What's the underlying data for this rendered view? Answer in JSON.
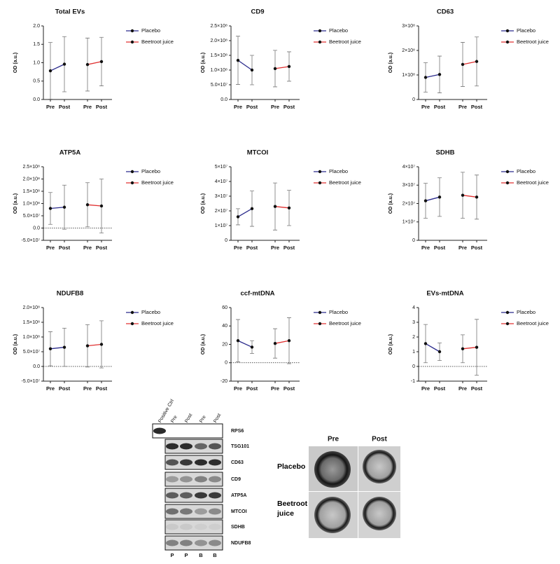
{
  "chart_data": [
    {
      "type": "line",
      "title": "Total EVs",
      "ylabel": "OD (a.u.)",
      "categories": [
        "Pre",
        "Post",
        "Pre",
        "Post"
      ],
      "series": [
        {
          "name": "Placebo",
          "color": "#2b2b8c",
          "values": [
            0.78,
            0.96,
            null,
            null
          ],
          "errors": [
            0.77,
            0.75,
            null,
            null
          ]
        },
        {
          "name": "Beetroot juice",
          "color": "#e03030",
          "values": [
            null,
            null,
            0.95,
            1.03
          ],
          "errors": [
            null,
            null,
            0.72,
            0.66
          ]
        }
      ],
      "ylim": [
        0,
        2
      ],
      "yticks": [
        {
          "value": 0,
          "label": "0.0"
        },
        0.5,
        {
          "value": 1,
          "label": "1.0"
        },
        1.5,
        {
          "value": 2,
          "label": "2.0"
        }
      ]
    },
    {
      "type": "line",
      "title": "CD9",
      "ylabel": "OD (a.u.)",
      "categories": [
        "Pre",
        "Post",
        "Pre",
        "Post"
      ],
      "series": [
        {
          "name": "Placebo",
          "color": "#2b2b8c",
          "values": [
            133000000,
            100000000,
            null,
            null
          ],
          "errors": [
            82000000,
            50000000,
            null,
            null
          ]
        },
        {
          "name": "Beetroot juice",
          "color": "#e03030",
          "values": [
            null,
            null,
            105000000,
            112000000
          ],
          "errors": [
            null,
            null,
            62000000,
            50000000
          ]
        }
      ],
      "ylim": [
        0,
        250000000
      ],
      "yticks": [
        {
          "value": 0,
          "label": "0.0"
        },
        {
          "value": 50000000,
          "label": "5.0×10⁷"
        },
        {
          "value": 100000000,
          "label": "1.0×10⁸"
        },
        {
          "value": 150000000,
          "label": "1.5×10⁸"
        },
        {
          "value": 200000000,
          "label": "2.0×10⁸"
        },
        {
          "value": 250000000,
          "label": "2.5×10⁸"
        }
      ]
    },
    {
      "type": "line",
      "title": "CD63",
      "ylabel": "OD (a.u.)",
      "categories": [
        "Pre",
        "Post",
        "Pre",
        "Post"
      ],
      "series": [
        {
          "name": "Placebo",
          "color": "#2b2b8c",
          "values": [
            90000000,
            102000000,
            null,
            null
          ],
          "errors": [
            60000000,
            75000000,
            null,
            null
          ]
        },
        {
          "name": "Beetroot juice",
          "color": "#e03030",
          "values": [
            null,
            null,
            143000000,
            155000000
          ],
          "errors": [
            null,
            null,
            90000000,
            100000000
          ]
        }
      ],
      "ylim": [
        0,
        300000000
      ],
      "yticks": [
        0,
        {
          "value": 100000000,
          "label": "1×10⁸"
        },
        {
          "value": 200000000,
          "label": "2×10⁸"
        },
        {
          "value": 300000000,
          "label": "3×10⁸"
        }
      ]
    },
    {
      "type": "line",
      "title": "ATP5A",
      "ylabel": "OD (a.u.)",
      "categories": [
        "Pre",
        "Post",
        "Pre",
        "Post"
      ],
      "series": [
        {
          "name": "Placebo",
          "color": "#2b2b8c",
          "values": [
            80000000,
            85000000,
            null,
            null
          ],
          "errors": [
            65000000,
            90000000,
            null,
            null
          ]
        },
        {
          "name": "Beetroot juice",
          "color": "#e03030",
          "values": [
            null,
            null,
            95000000,
            90000000
          ],
          "errors": [
            null,
            null,
            90000000,
            110000000
          ]
        }
      ],
      "ylim": [
        -50000000,
        250000000
      ],
      "yticks": [
        {
          "value": -50000000,
          "label": "-5.0×10⁷"
        },
        {
          "value": 0,
          "label": "0.0"
        },
        {
          "value": 50000000,
          "label": "5.0×10⁷"
        },
        {
          "value": 100000000,
          "label": "1.0×10⁸"
        },
        {
          "value": 150000000,
          "label": "1.5×10⁸"
        },
        {
          "value": 200000000,
          "label": "2.0×10⁸"
        },
        {
          "value": 250000000,
          "label": "2.5×10⁸"
        }
      ]
    },
    {
      "type": "line",
      "title": "MTCOI",
      "ylabel": "OD (a.u.)",
      "categories": [
        "Pre",
        "Post",
        "Pre",
        "Post"
      ],
      "series": [
        {
          "name": "Placebo",
          "color": "#2b2b8c",
          "values": [
            16000000,
            21500000,
            null,
            null
          ],
          "errors": [
            5500000,
            12000000,
            null,
            null
          ]
        },
        {
          "name": "Beetroot juice",
          "color": "#e03030",
          "values": [
            null,
            null,
            23000000,
            22000000
          ],
          "errors": [
            null,
            null,
            16000000,
            12000000
          ]
        }
      ],
      "ylim": [
        0,
        50000000
      ],
      "yticks": [
        0,
        {
          "value": 10000000,
          "label": "1×10⁷"
        },
        {
          "value": 20000000,
          "label": "2×10⁷"
        },
        {
          "value": 30000000,
          "label": "3×10⁷"
        },
        {
          "value": 40000000,
          "label": "4×10⁷"
        },
        {
          "value": 50000000,
          "label": "5×10⁷"
        }
      ]
    },
    {
      "type": "line",
      "title": "SDHB",
      "ylabel": "OD (a.u.)",
      "categories": [
        "Pre",
        "Post",
        "Pre",
        "Post"
      ],
      "series": [
        {
          "name": "Placebo",
          "color": "#2b2b8c",
          "values": [
            21500000,
            23500000,
            null,
            null
          ],
          "errors": [
            9500000,
            10500000,
            null,
            null
          ]
        },
        {
          "name": "Beetroot juice",
          "color": "#e03030",
          "values": [
            null,
            null,
            24500000,
            23500000
          ],
          "errors": [
            null,
            null,
            12500000,
            12000000
          ]
        }
      ],
      "ylim": [
        0,
        40000000
      ],
      "yticks": [
        0,
        {
          "value": 10000000,
          "label": "1×10⁷"
        },
        {
          "value": 20000000,
          "label": "2×10⁷"
        },
        {
          "value": 30000000,
          "label": "3×10⁷"
        },
        {
          "value": 40000000,
          "label": "4×10⁷"
        }
      ]
    },
    {
      "type": "line",
      "title": "NDUFB8",
      "ylabel": "OD (a.u.)",
      "categories": [
        "Pre",
        "Post",
        "Pre",
        "Post"
      ],
      "series": [
        {
          "name": "Placebo",
          "color": "#2b2b8c",
          "values": [
            60000000,
            65000000,
            null,
            null
          ],
          "errors": [
            58000000,
            65000000,
            null,
            null
          ]
        },
        {
          "name": "Beetroot juice",
          "color": "#e03030",
          "values": [
            null,
            null,
            70000000,
            75000000
          ],
          "errors": [
            null,
            null,
            72000000,
            80000000
          ]
        }
      ],
      "ylim": [
        -50000000,
        200000000
      ],
      "yticks": [
        {
          "value": -50000000,
          "label": "-5.0×10⁷"
        },
        {
          "value": 0,
          "label": "0.0"
        },
        {
          "value": 50000000,
          "label": "5.0×10⁷"
        },
        {
          "value": 100000000,
          "label": "1.0×10⁸"
        },
        {
          "value": 150000000,
          "label": "1.5×10⁸"
        },
        {
          "value": 200000000,
          "label": "2.0×10⁸"
        }
      ]
    },
    {
      "type": "line",
      "title": "ccf-mtDNA",
      "ylabel": "OD (a.u.)",
      "categories": [
        "Pre",
        "Post",
        "Pre",
        "Post"
      ],
      "series": [
        {
          "name": "Placebo",
          "color": "#2b2b8c",
          "values": [
            24,
            17,
            null,
            null
          ],
          "errors": [
            23,
            7,
            null,
            null
          ]
        },
        {
          "name": "Beetroot juice",
          "color": "#e03030",
          "values": [
            null,
            null,
            21,
            24
          ],
          "errors": [
            null,
            null,
            16,
            25
          ]
        }
      ],
      "ylim": [
        -20,
        60
      ],
      "yticks": [
        -20,
        0,
        20,
        40,
        60
      ]
    },
    {
      "type": "line",
      "title": "EVs-mtDNA",
      "ylabel": "OD (a.u.)",
      "categories": [
        "Pre",
        "Post",
        "Pre",
        "Post"
      ],
      "series": [
        {
          "name": "Placebo",
          "color": "#2b2b8c",
          "values": [
            1.55,
            1.0,
            null,
            null
          ],
          "errors": [
            1.3,
            0.6,
            null,
            null
          ]
        },
        {
          "name": "Beetroot juice",
          "color": "#e03030",
          "values": [
            null,
            null,
            1.2,
            1.3
          ],
          "errors": [
            null,
            null,
            0.95,
            1.9
          ]
        }
      ],
      "ylim": [
        -1,
        4
      ],
      "yticks": [
        -1,
        0,
        1,
        2,
        3,
        4
      ]
    }
  ],
  "blot": {
    "lanes": [
      "Positive Ctrl",
      "Pre",
      "Post",
      "Pre",
      "Post"
    ],
    "proteins": [
      "RPS6",
      "TSG101",
      "CD63",
      "CD9",
      "ATP5A",
      "MTCOI",
      "SDHB",
      "NDUFB8"
    ],
    "groups": [
      "P",
      "P",
      "B",
      "B"
    ]
  },
  "tem": {
    "columns": [
      "Pre",
      "Post"
    ],
    "rows": [
      "Placebo",
      "Beetroot juice"
    ]
  }
}
